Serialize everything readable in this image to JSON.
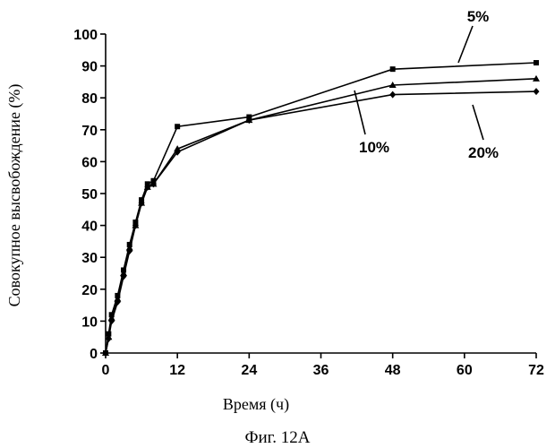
{
  "chart_data": {
    "type": "line",
    "xlabel": "Время (ч)",
    "ylabel": "Совокупное высвобождение (%)",
    "caption": "Фиг. 12А",
    "xlim": [
      0,
      72
    ],
    "ylim": [
      0,
      100
    ],
    "x_ticks": [
      0,
      12,
      24,
      36,
      48,
      60,
      72
    ],
    "y_ticks": [
      0,
      10,
      20,
      30,
      40,
      50,
      60,
      70,
      80,
      90,
      100
    ],
    "series": [
      {
        "name": "5%",
        "marker": "square",
        "x": [
          0,
          0.5,
          1,
          2,
          3,
          4,
          5,
          6,
          7,
          8,
          12,
          24,
          48,
          72
        ],
        "y": [
          0,
          6,
          12,
          18,
          26,
          34,
          41,
          48,
          53,
          54,
          71,
          74,
          89,
          91
        ]
      },
      {
        "name": "10%",
        "marker": "triangle",
        "x": [
          0,
          0.5,
          1,
          2,
          3,
          4,
          5,
          6,
          7,
          8,
          12,
          24,
          48,
          72
        ],
        "y": [
          0,
          5,
          11,
          17,
          25,
          33,
          40,
          47,
          52,
          53,
          64,
          73,
          84,
          86
        ]
      },
      {
        "name": "20%",
        "marker": "diamond",
        "x": [
          0,
          0.5,
          1,
          2,
          3,
          4,
          5,
          6,
          7,
          8,
          12,
          24,
          48,
          72
        ],
        "y": [
          0,
          4.5,
          10,
          16,
          24,
          32,
          40,
          47,
          52,
          53,
          63,
          73,
          81,
          82
        ]
      }
    ],
    "annotations": [
      {
        "text": "5%",
        "series": "5%"
      },
      {
        "text": "10%",
        "series": "10%"
      },
      {
        "text": "20%",
        "series": "20%"
      }
    ]
  }
}
